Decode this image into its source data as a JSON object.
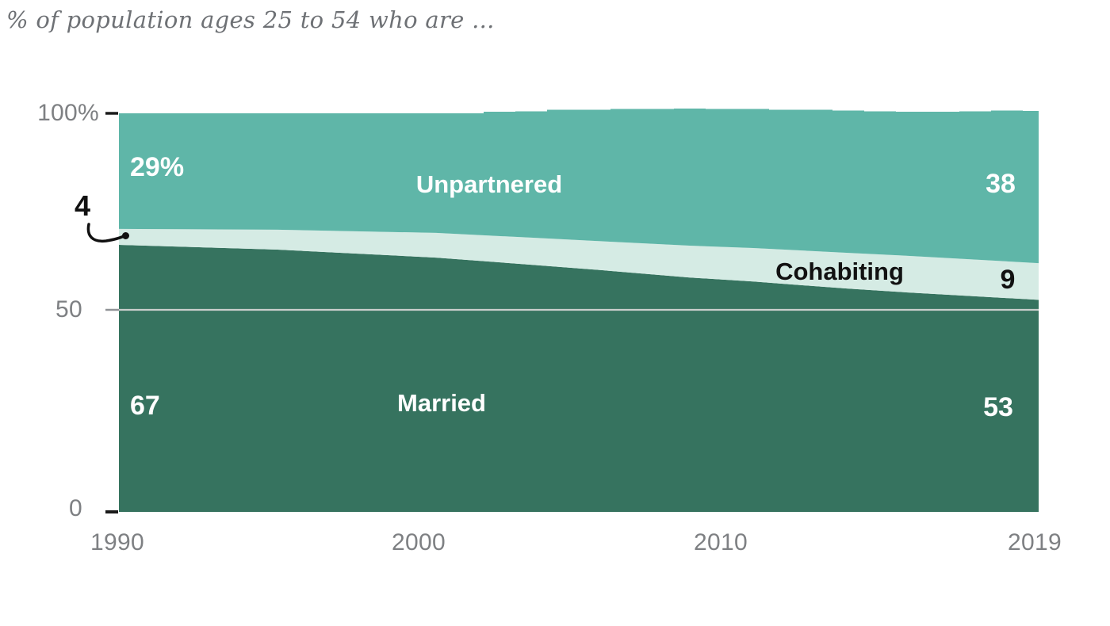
{
  "title": "% of population ages 25 to 54 who are ...",
  "colors": {
    "married": "#36735F",
    "cohabiting": "#D5EBE4",
    "unpartnered": "#5FB6A8",
    "gridline": "#C9CFCC",
    "outer_tick_50": "#8F9296",
    "axis_tick": "#1A1A1A",
    "axis_text": "#7E8083",
    "title_text": "#6E7175",
    "callout": "#111111"
  },
  "y_axis": {
    "ticks": [
      "100%",
      "50",
      "0"
    ],
    "values": [
      100,
      50,
      0
    ]
  },
  "x_axis": {
    "ticks": [
      "1990",
      "2000",
      "2010",
      "2019"
    ],
    "values": [
      1990,
      2000,
      2010,
      2019
    ]
  },
  "annotations": {
    "unpartnered": {
      "start": "29%",
      "label": "Unpartnered",
      "end": "38"
    },
    "cohabiting": {
      "start": "4",
      "label": "Cohabiting",
      "end": "9"
    },
    "married": {
      "start": "67",
      "label": "Married",
      "end": "53"
    }
  },
  "chart_data": {
    "type": "area",
    "stacked": true,
    "title": "% of population ages 25 to 54 who are ...",
    "xlabel": "",
    "ylabel": "% of population ages 25 to 54",
    "xlim": [
      1990,
      2019
    ],
    "ylim": [
      0,
      100
    ],
    "grid": "single horizontal line at 50",
    "legend_position": "labels inside areas",
    "x_anchor_years": [
      1990,
      1995,
      2000,
      2003,
      2005,
      2008,
      2010,
      2013,
      2015,
      2019
    ],
    "series": [
      {
        "name": "Married",
        "start_value": 67,
        "end_value": 53,
        "values": [
          67,
          65.8,
          63.8,
          62.0,
          60.8,
          58.8,
          57.8,
          56.0,
          55.0,
          53.2
        ]
      },
      {
        "name": "Cohabiting",
        "start_value": 4,
        "end_value": 9,
        "values": [
          4,
          5.0,
          6.2,
          6.8,
          7.2,
          8.0,
          8.4,
          9.0,
          9.2,
          9.2
        ]
      },
      {
        "name": "Unpartnered",
        "start_value": 29,
        "end_value": 38,
        "values": [
          29,
          29.2,
          30.0,
          31.6,
          32.9,
          34.3,
          34.9,
          35.7,
          36.2,
          38.2
        ]
      }
    ],
    "totals_by_year": {
      "years_start": 1990,
      "values": [
        100,
        100,
        100,
        100,
        100,
        100,
        100,
        100,
        100,
        100,
        100,
        100,
        100.4,
        100.5,
        100.9,
        100.9,
        101.1,
        101.1,
        101.2,
        101.1,
        101.1,
        100.9,
        100.9,
        100.7,
        100.5,
        100.4,
        100.4,
        100.5,
        100.7,
        100.6
      ]
    }
  }
}
